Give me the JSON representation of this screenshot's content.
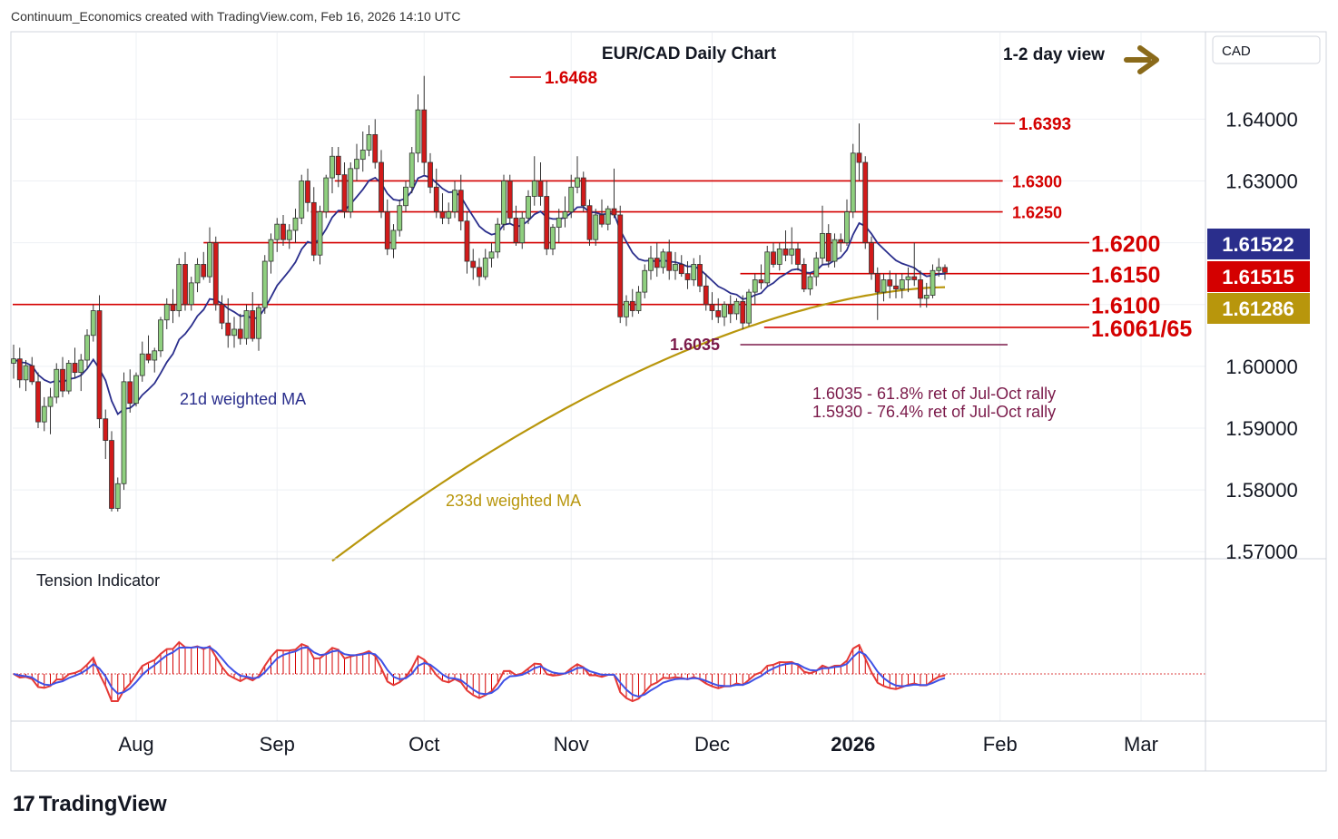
{
  "header": {
    "credit": "Continuum_Economics created with TradingView.com, Feb 16, 2026 14:10 UTC"
  },
  "footer": {
    "logo_text": "TradingView"
  },
  "chart_data": {
    "type": "candlestick",
    "title": "EUR/CAD Daily Chart",
    "view_label": "1-2 day view",
    "view_direction": "sideways",
    "currency": "CAD",
    "y_range": [
      1.57,
      1.65
    ],
    "y_ticks": [
      "1.57000",
      "1.58000",
      "1.59000",
      "1.60000",
      "1.61000",
      "1.62000",
      "1.63000",
      "1.64000"
    ],
    "x_ticks": [
      "Aug",
      "Sep",
      "Oct",
      "Nov",
      "Dec",
      "2026",
      "Feb",
      "Mar"
    ],
    "price_tags": [
      {
        "value": "1.61522",
        "color": "#2a2e8c"
      },
      {
        "value": "1.61515",
        "color": "#d40000"
      },
      {
        "value": "1.61286",
        "color": "#b8960c"
      }
    ],
    "levels": [
      {
        "value": 1.63,
        "label": "1.6300",
        "from": 0.27,
        "to": 0.83,
        "size": "small"
      },
      {
        "value": 1.625,
        "label": "1.6250",
        "from": 0.25,
        "to": 0.83,
        "size": "small"
      },
      {
        "value": 1.62,
        "label": "1.6200",
        "from": 0.16,
        "to": 0.91,
        "size": "large"
      },
      {
        "value": 1.615,
        "label": "1.6150",
        "from": 0.61,
        "to": 0.91,
        "size": "large"
      },
      {
        "value": 1.61,
        "label": "1.6100",
        "from": 0.0,
        "to": 0.91,
        "size": "large"
      },
      {
        "value": 1.6063,
        "label": "1.6061/65",
        "from": 0.63,
        "to": 0.91,
        "size": "large"
      },
      {
        "value": 1.6035,
        "label": "1.6035",
        "from": 0.61,
        "to": 0.91,
        "size": "small",
        "color": "#7b1a4a"
      }
    ],
    "peaks": [
      {
        "value": 1.6468,
        "label": "1.6468"
      },
      {
        "value": 1.6393,
        "label": "1.6393"
      }
    ],
    "annotations": [
      "1.6035 - 61.8% ret of Jul-Oct rally",
      "1.5930 - 76.4% ret of Jul-Oct rally"
    ],
    "ma_labels": {
      "ma21": "21d weighted MA",
      "ma233": "233d weighted MA"
    },
    "candles": [
      [
        1.6005,
        1.6035,
        1.598,
        1.6012
      ],
      [
        1.6012,
        1.603,
        1.5965,
        1.5978
      ],
      [
        1.5978,
        1.601,
        1.596,
        1.6001
      ],
      [
        1.6001,
        1.6015,
        1.597,
        1.5975
      ],
      [
        1.5975,
        1.599,
        1.59,
        1.591
      ],
      [
        1.591,
        1.595,
        1.5895,
        1.5935
      ],
      [
        1.5935,
        1.5965,
        1.589,
        1.595
      ],
      [
        1.595,
        1.6005,
        1.594,
        1.5995
      ],
      [
        1.5995,
        1.6015,
        1.595,
        1.596
      ],
      [
        1.596,
        1.601,
        1.5955,
        1.6005
      ],
      [
        1.6005,
        1.603,
        1.598,
        1.599
      ],
      [
        1.599,
        1.602,
        1.596,
        1.601
      ],
      [
        1.601,
        1.606,
        1.5995,
        1.605
      ],
      [
        1.605,
        1.61,
        1.604,
        1.609
      ],
      [
        1.609,
        1.6115,
        1.59,
        1.5915
      ],
      [
        1.5915,
        1.593,
        1.585,
        1.588
      ],
      [
        1.588,
        1.5895,
        1.5765,
        1.577
      ],
      [
        1.577,
        1.582,
        1.5765,
        1.581
      ],
      [
        1.581,
        1.599,
        1.58,
        1.5975
      ],
      [
        1.5975,
        1.5995,
        1.5925,
        1.594
      ],
      [
        1.594,
        1.599,
        1.5935,
        1.5985
      ],
      [
        1.5985,
        1.604,
        1.5975,
        1.602
      ],
      [
        1.602,
        1.605,
        1.6005,
        1.601
      ],
      [
        1.601,
        1.603,
        1.599,
        1.6025
      ],
      [
        1.6025,
        1.608,
        1.6015,
        1.6075
      ],
      [
        1.6075,
        1.611,
        1.606,
        1.61
      ],
      [
        1.61,
        1.6125,
        1.607,
        1.609
      ],
      [
        1.609,
        1.6175,
        1.608,
        1.6165
      ],
      [
        1.6165,
        1.6185,
        1.609,
        1.61
      ],
      [
        1.61,
        1.6145,
        1.609,
        1.6135
      ],
      [
        1.6135,
        1.6175,
        1.612,
        1.6165
      ],
      [
        1.6165,
        1.6185,
        1.614,
        1.6145
      ],
      [
        1.6145,
        1.6225,
        1.6135,
        1.62
      ],
      [
        1.62,
        1.621,
        1.609,
        1.61
      ],
      [
        1.61,
        1.6115,
        1.606,
        1.607
      ],
      [
        1.607,
        1.611,
        1.603,
        1.605
      ],
      [
        1.605,
        1.608,
        1.603,
        1.606
      ],
      [
        1.606,
        1.6085,
        1.6035,
        1.6045
      ],
      [
        1.6045,
        1.61,
        1.6035,
        1.609
      ],
      [
        1.609,
        1.612,
        1.604,
        1.6045
      ],
      [
        1.6045,
        1.61,
        1.6025,
        1.6095
      ],
      [
        1.6095,
        1.618,
        1.6085,
        1.617
      ],
      [
        1.617,
        1.6215,
        1.615,
        1.6205
      ],
      [
        1.6205,
        1.624,
        1.6185,
        1.623
      ],
      [
        1.623,
        1.6245,
        1.6195,
        1.6205
      ],
      [
        1.6205,
        1.623,
        1.619,
        1.622
      ],
      [
        1.622,
        1.6255,
        1.62,
        1.624
      ],
      [
        1.624,
        1.631,
        1.623,
        1.63
      ],
      [
        1.63,
        1.632,
        1.625,
        1.6265
      ],
      [
        1.6265,
        1.629,
        1.617,
        1.618
      ],
      [
        1.618,
        1.626,
        1.6165,
        1.625
      ],
      [
        1.625,
        1.631,
        1.624,
        1.6305
      ],
      [
        1.6305,
        1.6355,
        1.628,
        1.634
      ],
      [
        1.634,
        1.6355,
        1.629,
        1.631
      ],
      [
        1.631,
        1.633,
        1.624,
        1.625
      ],
      [
        1.625,
        1.633,
        1.624,
        1.632
      ],
      [
        1.632,
        1.636,
        1.63,
        1.6335
      ],
      [
        1.6335,
        1.638,
        1.6315,
        1.635
      ],
      [
        1.635,
        1.639,
        1.634,
        1.6375
      ],
      [
        1.6375,
        1.64,
        1.632,
        1.633
      ],
      [
        1.633,
        1.635,
        1.624,
        1.625
      ],
      [
        1.625,
        1.627,
        1.618,
        1.619
      ],
      [
        1.619,
        1.623,
        1.6175,
        1.622
      ],
      [
        1.622,
        1.627,
        1.621,
        1.626
      ],
      [
        1.626,
        1.63,
        1.625,
        1.629
      ],
      [
        1.629,
        1.6355,
        1.628,
        1.6345
      ],
      [
        1.6345,
        1.644,
        1.633,
        1.6415
      ],
      [
        1.6415,
        1.647,
        1.631,
        1.633
      ],
      [
        1.633,
        1.6345,
        1.628,
        1.629
      ],
      [
        1.629,
        1.632,
        1.624,
        1.625
      ],
      [
        1.625,
        1.628,
        1.623,
        1.624
      ],
      [
        1.624,
        1.6265,
        1.623,
        1.625
      ],
      [
        1.625,
        1.63,
        1.624,
        1.6285
      ],
      [
        1.6285,
        1.631,
        1.622,
        1.6235
      ],
      [
        1.6235,
        1.625,
        1.615,
        1.617
      ],
      [
        1.617,
        1.619,
        1.614,
        1.616
      ],
      [
        1.616,
        1.6175,
        1.613,
        1.6145
      ],
      [
        1.6145,
        1.619,
        1.614,
        1.6175
      ],
      [
        1.6175,
        1.62,
        1.616,
        1.6185
      ],
      [
        1.6185,
        1.624,
        1.6175,
        1.623
      ],
      [
        1.623,
        1.631,
        1.622,
        1.63
      ],
      [
        1.63,
        1.631,
        1.623,
        1.624
      ],
      [
        1.624,
        1.626,
        1.6195,
        1.62
      ],
      [
        1.62,
        1.625,
        1.619,
        1.624
      ],
      [
        1.624,
        1.6285,
        1.623,
        1.6275
      ],
      [
        1.6275,
        1.634,
        1.626,
        1.63
      ],
      [
        1.63,
        1.633,
        1.626,
        1.6275
      ],
      [
        1.6275,
        1.63,
        1.618,
        1.619
      ],
      [
        1.619,
        1.623,
        1.618,
        1.6225
      ],
      [
        1.6225,
        1.6255,
        1.62,
        1.624
      ],
      [
        1.624,
        1.6275,
        1.6225,
        1.625
      ],
      [
        1.625,
        1.631,
        1.624,
        1.629
      ],
      [
        1.629,
        1.634,
        1.628,
        1.6305
      ],
      [
        1.6305,
        1.6315,
        1.625,
        1.626
      ],
      [
        1.626,
        1.627,
        1.6195,
        1.6205
      ],
      [
        1.6205,
        1.6255,
        1.6195,
        1.6245
      ],
      [
        1.6245,
        1.627,
        1.6225,
        1.623
      ],
      [
        1.623,
        1.626,
        1.622,
        1.6255
      ],
      [
        1.6255,
        1.632,
        1.624,
        1.6245
      ],
      [
        1.6245,
        1.626,
        1.607,
        1.608
      ],
      [
        1.608,
        1.6115,
        1.6065,
        1.6105
      ],
      [
        1.6105,
        1.6125,
        1.608,
        1.609
      ],
      [
        1.609,
        1.613,
        1.6085,
        1.612
      ],
      [
        1.612,
        1.6165,
        1.611,
        1.6155
      ],
      [
        1.6155,
        1.6195,
        1.614,
        1.6175
      ],
      [
        1.6175,
        1.62,
        1.6145,
        1.616
      ],
      [
        1.616,
        1.619,
        1.615,
        1.6185
      ],
      [
        1.6185,
        1.6205,
        1.614,
        1.6155
      ],
      [
        1.6155,
        1.6185,
        1.614,
        1.6165
      ],
      [
        1.6165,
        1.618,
        1.6145,
        1.615
      ],
      [
        1.615,
        1.617,
        1.6125,
        1.614
      ],
      [
        1.614,
        1.6175,
        1.613,
        1.6165
      ],
      [
        1.6165,
        1.618,
        1.612,
        1.613
      ],
      [
        1.613,
        1.615,
        1.609,
        1.61
      ],
      [
        1.61,
        1.612,
        1.6075,
        1.609
      ],
      [
        1.609,
        1.611,
        1.607,
        1.608
      ],
      [
        1.608,
        1.6105,
        1.6065,
        1.61
      ],
      [
        1.61,
        1.6115,
        1.607,
        1.6085
      ],
      [
        1.6085,
        1.611,
        1.6075,
        1.6105
      ],
      [
        1.6105,
        1.6115,
        1.606,
        1.607
      ],
      [
        1.607,
        1.6125,
        1.6065,
        1.612
      ],
      [
        1.612,
        1.615,
        1.61,
        1.614
      ],
      [
        1.614,
        1.6165,
        1.6125,
        1.6135
      ],
      [
        1.6135,
        1.6195,
        1.613,
        1.6185
      ],
      [
        1.6185,
        1.62,
        1.616,
        1.6165
      ],
      [
        1.6165,
        1.62,
        1.6155,
        1.619
      ],
      [
        1.619,
        1.622,
        1.617,
        1.618
      ],
      [
        1.618,
        1.6225,
        1.6165,
        1.619
      ],
      [
        1.619,
        1.62,
        1.6155,
        1.6165
      ],
      [
        1.6165,
        1.6175,
        1.612,
        1.6125
      ],
      [
        1.6125,
        1.615,
        1.6115,
        1.6145
      ],
      [
        1.6145,
        1.6185,
        1.613,
        1.6175
      ],
      [
        1.6175,
        1.626,
        1.6165,
        1.6215
      ],
      [
        1.6215,
        1.623,
        1.616,
        1.617
      ],
      [
        1.617,
        1.6215,
        1.616,
        1.6205
      ],
      [
        1.6205,
        1.6215,
        1.6185,
        1.62
      ],
      [
        1.62,
        1.627,
        1.6195,
        1.625
      ],
      [
        1.625,
        1.636,
        1.624,
        1.6345
      ],
      [
        1.6345,
        1.6393,
        1.63,
        1.633
      ],
      [
        1.633,
        1.634,
        1.619,
        1.62
      ],
      [
        1.62,
        1.621,
        1.614,
        1.615
      ],
      [
        1.615,
        1.616,
        1.6075,
        1.612
      ],
      [
        1.612,
        1.615,
        1.6105,
        1.614
      ],
      [
        1.614,
        1.6155,
        1.611,
        1.613
      ],
      [
        1.613,
        1.615,
        1.611,
        1.6125
      ],
      [
        1.6125,
        1.615,
        1.611,
        1.614
      ],
      [
        1.614,
        1.616,
        1.612,
        1.6145
      ],
      [
        1.6145,
        1.62,
        1.613,
        1.614
      ],
      [
        1.614,
        1.6155,
        1.6095,
        1.611
      ],
      [
        1.611,
        1.6135,
        1.6095,
        1.6115
      ],
      [
        1.6115,
        1.6165,
        1.611,
        1.6155
      ],
      [
        1.6155,
        1.6175,
        1.6145,
        1.616
      ],
      [
        1.616,
        1.6165,
        1.614,
        1.6152
      ]
    ]
  }
}
